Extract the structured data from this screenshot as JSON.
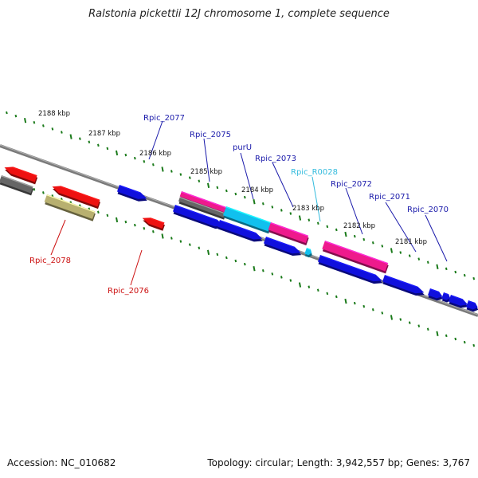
{
  "title": "Ralstonia pickettii 12J chromosome 1, complete sequence",
  "footer": {
    "accession": "Accession: NC_010682",
    "summary": "Topology: circular; Length: 3,942,557 bp; Genes: 3,767"
  },
  "colors": {
    "backbone": "#888888",
    "tick": "#1a7a1a",
    "cds_forward": "#1010dd",
    "cds_reverse": "#ee1111",
    "pseudo": "#666666",
    "gene_other": "#b8b070",
    "rrna_pink": "#ee1a8c",
    "trna_cyan": "#11c0ee",
    "label_blue": "#1a1aaa",
    "label_red": "#cc1111",
    "label_cyan": "#33bbdd"
  },
  "scale_labels": [
    "2188 kbp",
    "2187 kbp",
    "2186 kbp",
    "2185 kbp",
    "2184 kbp",
    "2183 kbp",
    "2182 kbp",
    "2181 kbp"
  ],
  "gene_labels": [
    {
      "id": "Rpic_2077",
      "text": "Rpic_2077",
      "color": "label_blue"
    },
    {
      "id": "Rpic_2075",
      "text": "Rpic_2075",
      "color": "label_blue"
    },
    {
      "id": "purU",
      "text": "purU",
      "color": "label_blue"
    },
    {
      "id": "Rpic_2073",
      "text": "Rpic_2073",
      "color": "label_blue"
    },
    {
      "id": "Rpic_R0028",
      "text": "Rpic_R0028",
      "color": "label_cyan"
    },
    {
      "id": "Rpic_2072",
      "text": "Rpic_2072",
      "color": "label_blue"
    },
    {
      "id": "Rpic_2071",
      "text": "Rpic_2071",
      "color": "label_blue"
    },
    {
      "id": "Rpic_2070",
      "text": "Rpic_2070",
      "color": "label_blue"
    },
    {
      "id": "Rpic_2078",
      "text": "Rpic_2078",
      "color": "label_red"
    },
    {
      "id": "Rpic_2076",
      "text": "Rpic_2076",
      "color": "label_red"
    }
  ]
}
